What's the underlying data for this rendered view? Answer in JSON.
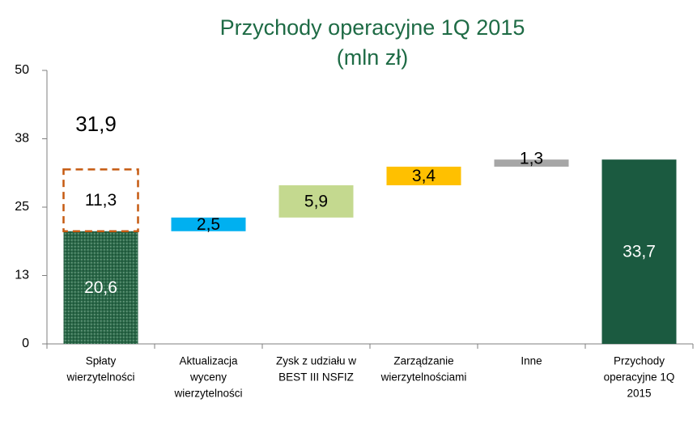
{
  "chart_data": {
    "type": "waterfall",
    "title": "Przychody operacyjne 1Q 2015",
    "subtitle": "(mln zł)",
    "categories": [
      [
        "Spłaty",
        "wierzytelności"
      ],
      [
        "Aktualizacja",
        "wyceny",
        "wierzytelności"
      ],
      [
        "Zysk z udziału w",
        "BEST III NSFIZ"
      ],
      [
        "Zarządzanie",
        "wierzytelnościami"
      ],
      [
        "Inne"
      ],
      [
        "Przychody",
        "operacyjne 1Q",
        "2015"
      ]
    ],
    "values": [
      20.6,
      2.5,
      5.9,
      3.4,
      1.3,
      33.7
    ],
    "value_labels": [
      "20,6",
      "2,5",
      "5,9",
      "3,4",
      "1,3",
      "33,7"
    ],
    "measure": [
      "absolute",
      "relative",
      "relative",
      "relative",
      "relative",
      "total"
    ],
    "colors": [
      "#2b6a49",
      "#00b0f0",
      "#c4d98f",
      "#ffc000",
      "#a6a6a6",
      "#1b5a40"
    ],
    "dashed_segment": {
      "value": 11.3,
      "value_label": "11,3",
      "color": "#c55a11"
    },
    "dashed_total": {
      "value": 31.9,
      "value_label": "31,9"
    },
    "ylim": [
      0,
      50
    ],
    "yticks": [
      0,
      {
        "value": 12.5,
        "label": "13"
      },
      25,
      {
        "value": 37.5,
        "label": "38"
      },
      50
    ]
  }
}
